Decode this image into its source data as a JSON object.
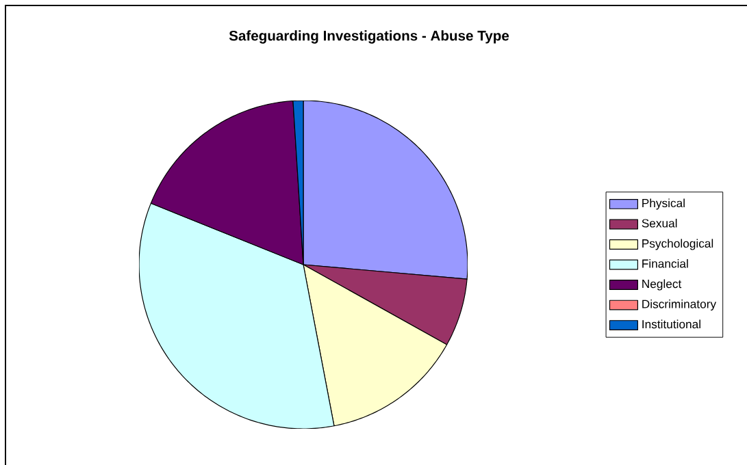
{
  "chart_data": {
    "type": "pie",
    "title": "Safeguarding Investigations - Abuse Type",
    "categories": [
      "Physical",
      "Sexual",
      "Psychological",
      "Financial",
      "Neglect",
      "Discriminatory",
      "Institutional"
    ],
    "values": [
      26.4,
      6.7,
      13.9,
      34.1,
      17.9,
      0,
      1.0
    ],
    "colors": [
      "#9999ff",
      "#993366",
      "#ffffcc",
      "#ccffff",
      "#660066",
      "#ff8080",
      "#0066cc"
    ],
    "legend": "right"
  }
}
